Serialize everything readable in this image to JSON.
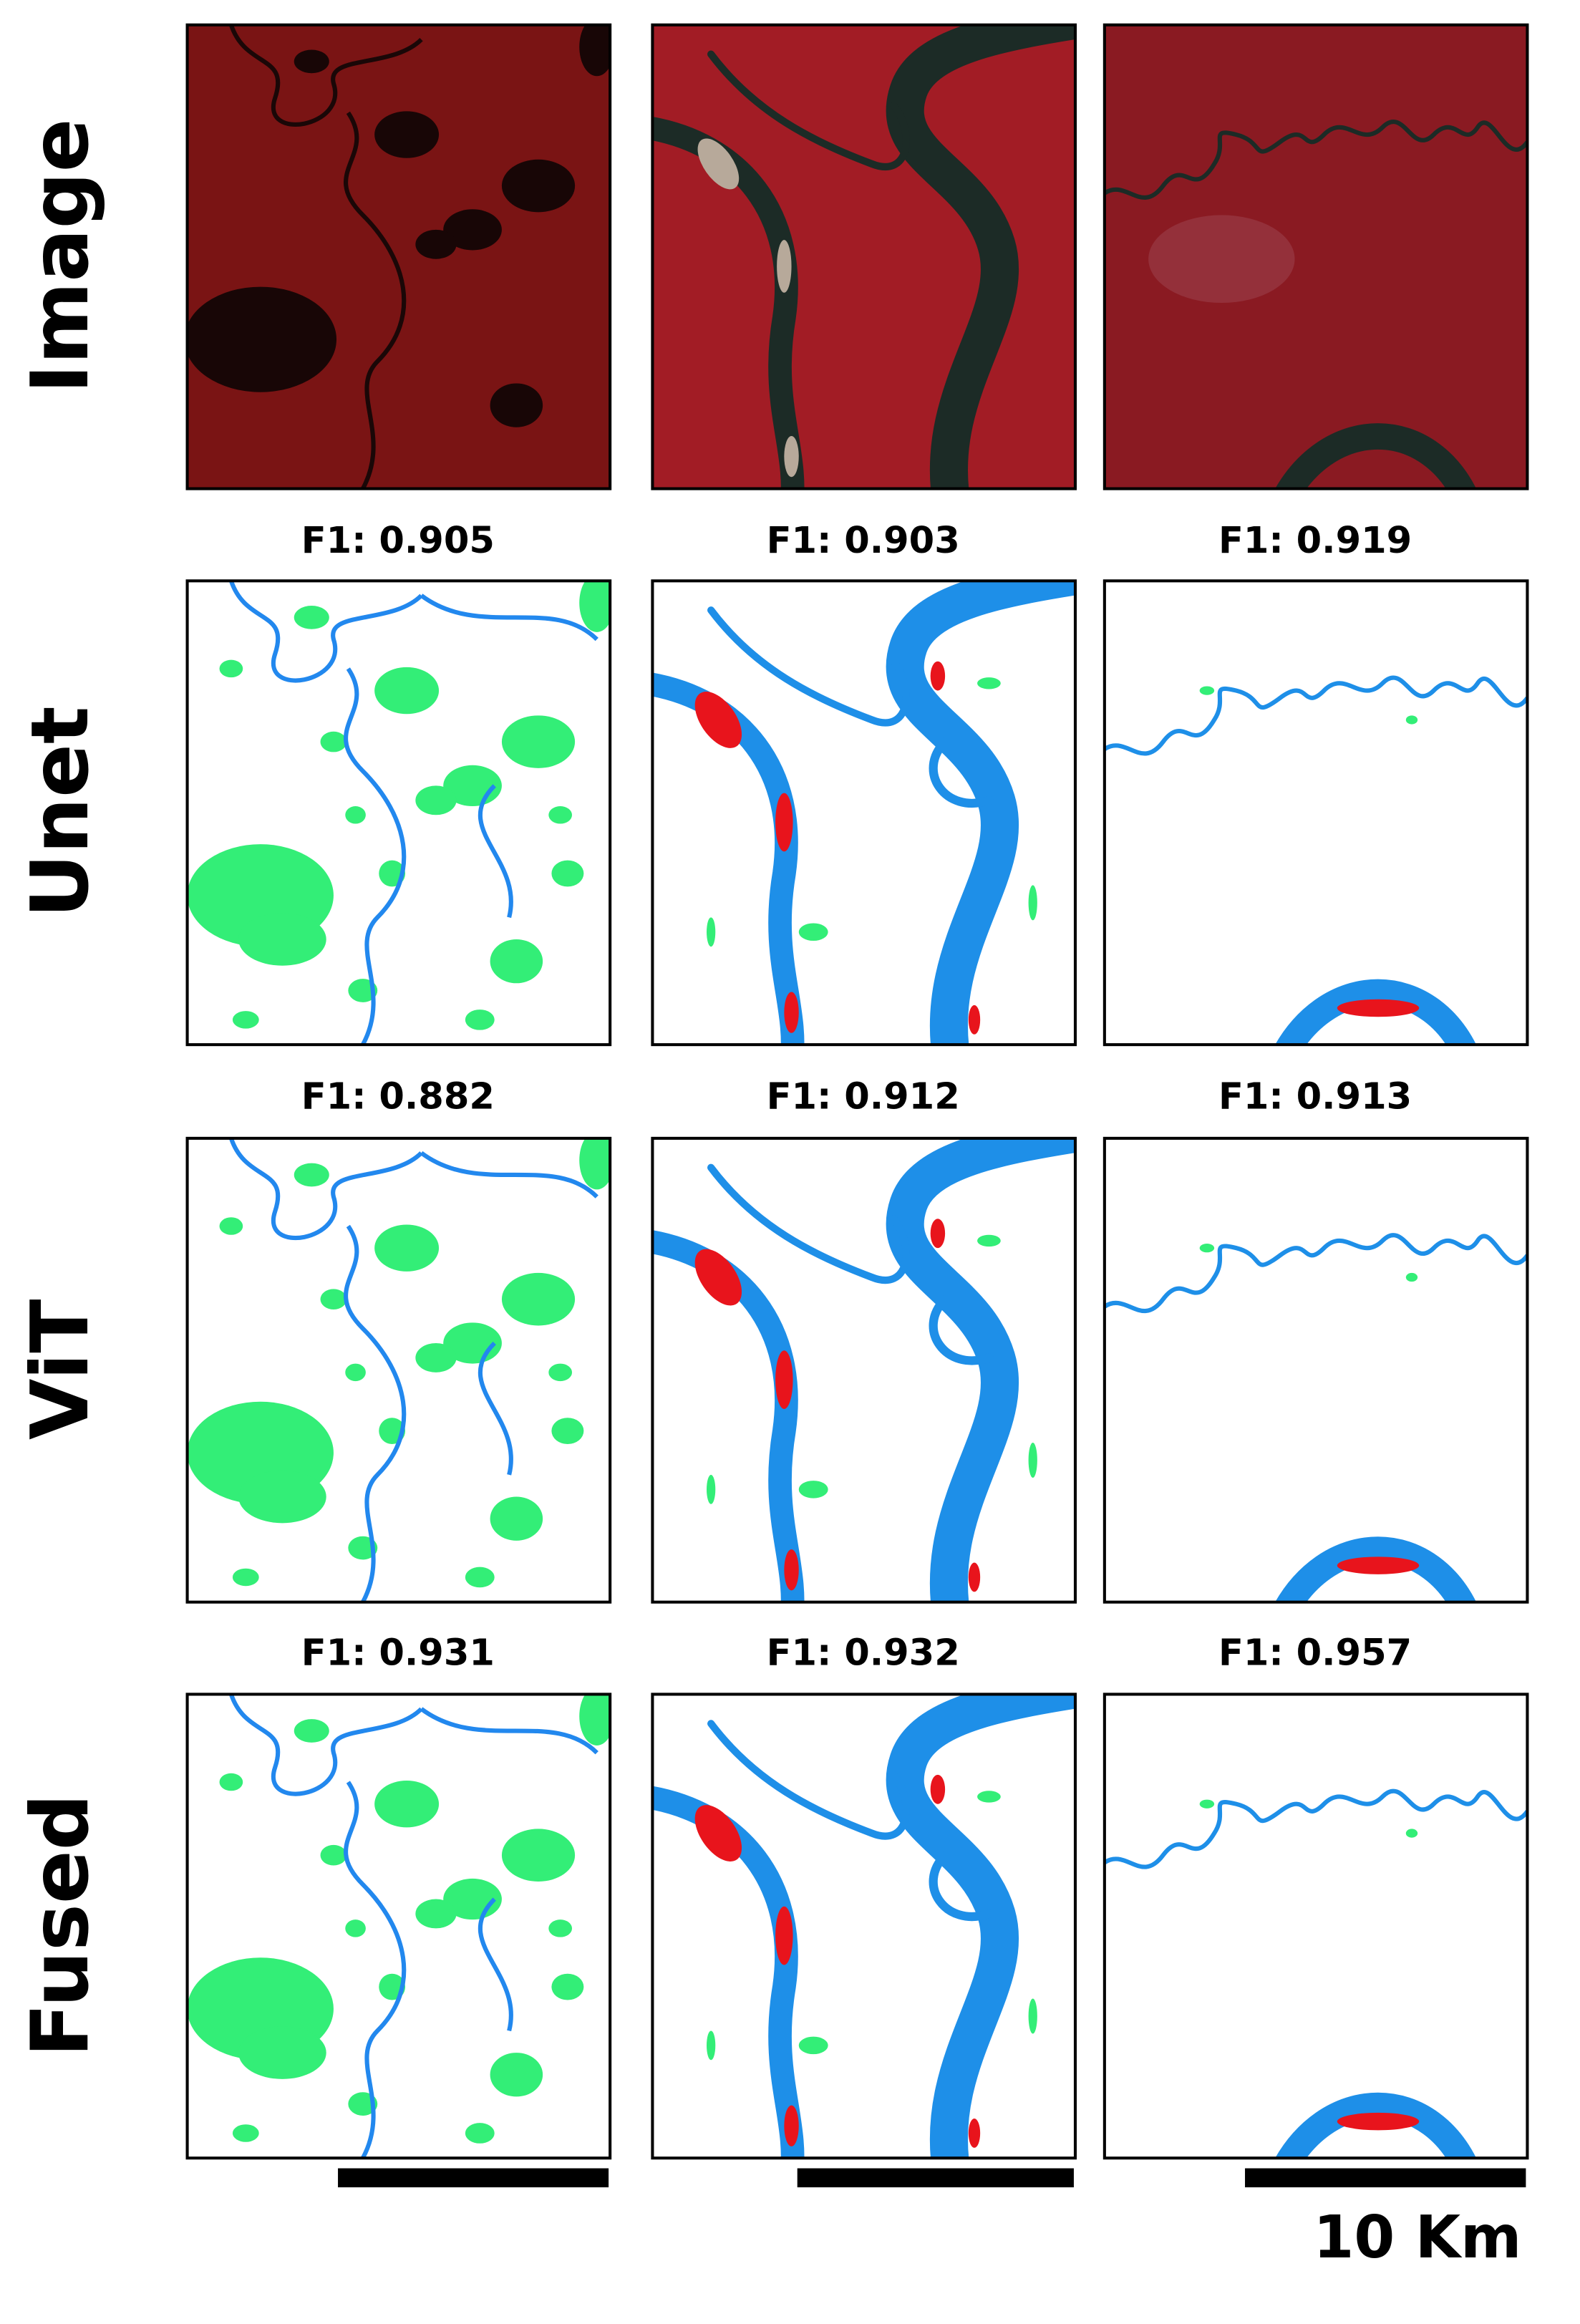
{
  "rows": [
    {
      "label": "Image"
    },
    {
      "label": "Unet",
      "scores": [
        "F1: 0.905",
        "F1: 0.903",
        "F1: 0.919"
      ]
    },
    {
      "label": "ViT",
      "scores": [
        "F1: 0.882",
        "F1: 0.912",
        "F1: 0.913"
      ]
    },
    {
      "label": "Fused",
      "scores": [
        "F1: 0.931",
        "F1: 0.932",
        "F1: 0.957"
      ]
    }
  ],
  "scale_bar": {
    "label": "10 Km"
  }
}
